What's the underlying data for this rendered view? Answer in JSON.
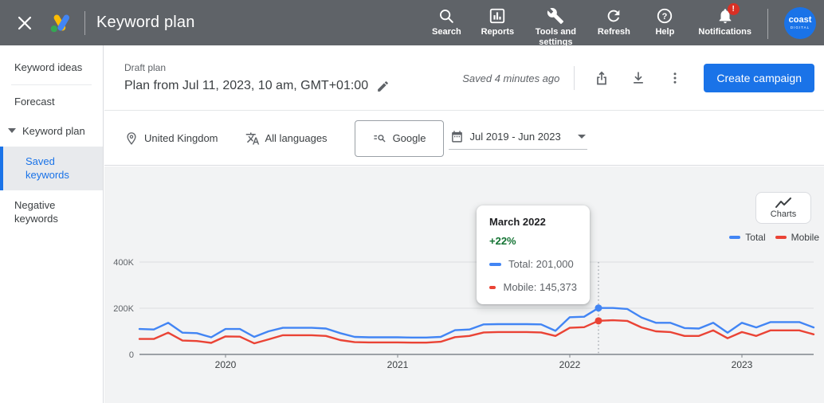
{
  "topbar": {
    "title": "Keyword plan",
    "nav": [
      {
        "icon": "search-icon",
        "label": "Search"
      },
      {
        "icon": "reports-icon",
        "label": "Reports"
      },
      {
        "icon": "tools-icon",
        "label": "Tools and settings"
      },
      {
        "icon": "refresh-icon",
        "label": "Refresh"
      },
      {
        "icon": "help-icon",
        "label": "Help"
      },
      {
        "icon": "notifications-icon",
        "label": "Notifications",
        "badge": "!"
      }
    ],
    "avatar": {
      "line1": "coast",
      "line2": "digital"
    }
  },
  "sidebar": {
    "items": [
      {
        "label": "Keyword ideas",
        "selected": false
      },
      {
        "label": "Forecast",
        "selected": false
      },
      {
        "label": "Keyword plan",
        "selected": false,
        "expanded": true
      },
      {
        "label": "Saved keywords",
        "selected": true
      },
      {
        "label": "Negative keywords",
        "selected": false
      }
    ]
  },
  "header": {
    "kicker": "Draft plan",
    "title": "Plan from Jul 11, 2023, 10 am, GMT+01:00",
    "saved_status": "Saved 4 minutes ago",
    "create_button": "Create campaign"
  },
  "filters": {
    "location": "United Kingdom",
    "language": "All languages",
    "network": "Google",
    "date_range": "Jul 2019 - Jun 2023"
  },
  "chart_panel": {
    "charts_button": "Charts",
    "legend": [
      {
        "label": "Total"
      },
      {
        "label": "Mobile"
      }
    ],
    "tooltip": {
      "title": "March 2022",
      "change": "+22%",
      "rows": [
        "Total: 201,000",
        "Mobile: 145,373"
      ]
    }
  },
  "colors": {
    "total_line": "#4285f4",
    "mobile_line": "#ea4335",
    "accent_blue": "#1a73e8",
    "positive_green": "#137333",
    "topbar_gray": "#5f6368",
    "notification_red": "#d93025"
  },
  "chart_data": {
    "type": "line",
    "x_start": "Jul 2019",
    "x_end": "Jun 2023",
    "points_per_series": 48,
    "x_cadence": "monthly",
    "x_tick_labels": [
      "2020",
      "2021",
      "2022",
      "2023"
    ],
    "x_tick_month_index": [
      6,
      18,
      30,
      42
    ],
    "y_ticks": [
      {
        "label": "0",
        "v": 0
      },
      {
        "label": "200K",
        "v": 200
      },
      {
        "label": "400K",
        "v": 400
      }
    ],
    "y_unit": "searches (thousands)",
    "ylim": [
      0,
      400
    ],
    "grid": true,
    "legend_position": "top-right",
    "series": [
      {
        "name": "Total",
        "color": "#4285f4",
        "values": [
          110,
          108,
          137,
          94,
          92,
          74,
          110,
          110,
          76,
          100,
          115,
          115,
          115,
          112,
          92,
          76,
          74,
          74,
          74,
          73,
          73,
          76,
          105,
          108,
          130,
          131,
          131,
          131,
          130,
          102,
          161,
          163,
          201,
          201,
          197,
          160,
          137,
          137,
          114,
          112,
          137,
          94,
          137,
          117,
          140,
          140,
          140,
          117
        ]
      },
      {
        "name": "Mobile",
        "color": "#ea4335",
        "values": [
          67,
          67,
          94,
          60,
          58,
          50,
          78,
          77,
          48,
          65,
          83,
          83,
          83,
          80,
          62,
          53,
          52,
          52,
          52,
          51,
          51,
          55,
          75,
          80,
          95,
          97,
          97,
          97,
          95,
          80,
          115,
          118,
          145.373,
          148,
          145,
          117,
          100,
          97,
          80,
          80,
          104,
          70,
          97,
          80,
          104,
          104,
          104,
          87
        ]
      }
    ],
    "highlight": {
      "month_index": 32,
      "label": "March 2022",
      "change_pct": 22,
      "total": 201000,
      "mobile": 145373
    }
  }
}
